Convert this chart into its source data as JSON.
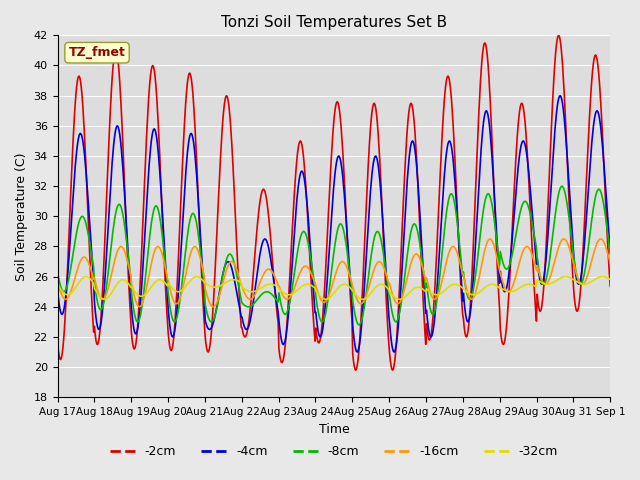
{
  "title": "Tonzi Soil Temperatures Set B",
  "xlabel": "Time",
  "ylabel": "Soil Temperature (C)",
  "ylim": [
    18,
    42
  ],
  "yticks": [
    18,
    20,
    22,
    24,
    26,
    28,
    30,
    32,
    34,
    36,
    38,
    40,
    42
  ],
  "colors": {
    "-2cm": "#dd0000",
    "-4cm": "#0000dd",
    "-8cm": "#00bb00",
    "-16cm": "#ff9900",
    "-32cm": "#dddd00"
  },
  "legend_label": "TZ_fmet",
  "legend_box_color": "#ffffcc",
  "legend_text_color": "#990000",
  "background_color": "#dddddd",
  "grid_color": "#ffffff",
  "x_tick_labels": [
    "Aug 17",
    "Aug 18",
    "Aug 19",
    "Aug 20",
    "Aug 21",
    "Aug 22",
    "Aug 23",
    "Aug 24",
    "Aug 25",
    "Aug 26",
    "Aug 27",
    "Aug 28",
    "Aug 29",
    "Aug 30",
    "Aug 31",
    "Sep 1"
  ],
  "n_days": 15,
  "series_labels": [
    "-2cm",
    "-4cm",
    "-8cm",
    "-16cm",
    "-32cm"
  ],
  "day_peaks_2cm": [
    39.3,
    41.0,
    40.0,
    39.5,
    38.0,
    31.8,
    35.0,
    37.6,
    37.5,
    37.5,
    39.3,
    41.5,
    37.5,
    42.0,
    40.7
  ],
  "day_troughs_2cm": [
    20.5,
    21.5,
    21.2,
    21.1,
    21.0,
    22.0,
    20.3,
    21.6,
    19.8,
    19.8,
    21.8,
    22.0,
    21.5,
    23.7,
    23.7
  ],
  "day_peaks_4cm": [
    35.5,
    36.0,
    35.8,
    35.5,
    27.0,
    28.5,
    33.0,
    34.0,
    34.0,
    35.0,
    35.0,
    37.0,
    35.0,
    38.0,
    37.0
  ],
  "day_troughs_4cm": [
    23.5,
    22.5,
    22.2,
    22.0,
    22.5,
    22.5,
    21.5,
    22.0,
    21.0,
    21.0,
    22.0,
    23.0,
    25.0,
    25.5,
    25.5
  ],
  "day_peaks_8cm": [
    30.0,
    30.8,
    30.7,
    30.2,
    27.5,
    25.0,
    29.0,
    29.5,
    29.0,
    29.5,
    31.5,
    31.5,
    31.0,
    32.0,
    31.8
  ],
  "day_troughs_8cm": [
    25.0,
    23.8,
    23.0,
    23.0,
    23.0,
    24.0,
    23.5,
    23.0,
    22.8,
    23.0,
    23.5,
    24.5,
    26.5,
    25.5,
    25.5
  ],
  "day_peaks_16cm": [
    27.3,
    28.0,
    28.0,
    28.0,
    27.0,
    26.5,
    26.7,
    27.0,
    27.0,
    27.5,
    28.0,
    28.5,
    28.0,
    28.5,
    28.5
  ],
  "day_troughs_16cm": [
    24.5,
    24.5,
    24.0,
    24.2,
    24.0,
    24.5,
    24.5,
    24.3,
    24.2,
    24.2,
    24.5,
    24.5,
    25.0,
    25.5,
    25.5
  ],
  "day_peaks_32cm": [
    26.0,
    25.8,
    25.8,
    26.0,
    25.8,
    25.5,
    25.5,
    25.5,
    25.5,
    25.3,
    25.5,
    25.5,
    25.5,
    26.0,
    26.0
  ],
  "day_troughs_32cm": [
    24.8,
    24.5,
    24.7,
    25.0,
    25.3,
    25.0,
    24.8,
    24.5,
    24.5,
    24.5,
    24.8,
    24.8,
    25.0,
    25.5,
    25.5
  ],
  "phase_offsets": {
    "-2cm": 0.58,
    "-4cm": 0.62,
    "-8cm": 0.67,
    "-16cm": 0.72,
    "-32cm": 0.77
  }
}
